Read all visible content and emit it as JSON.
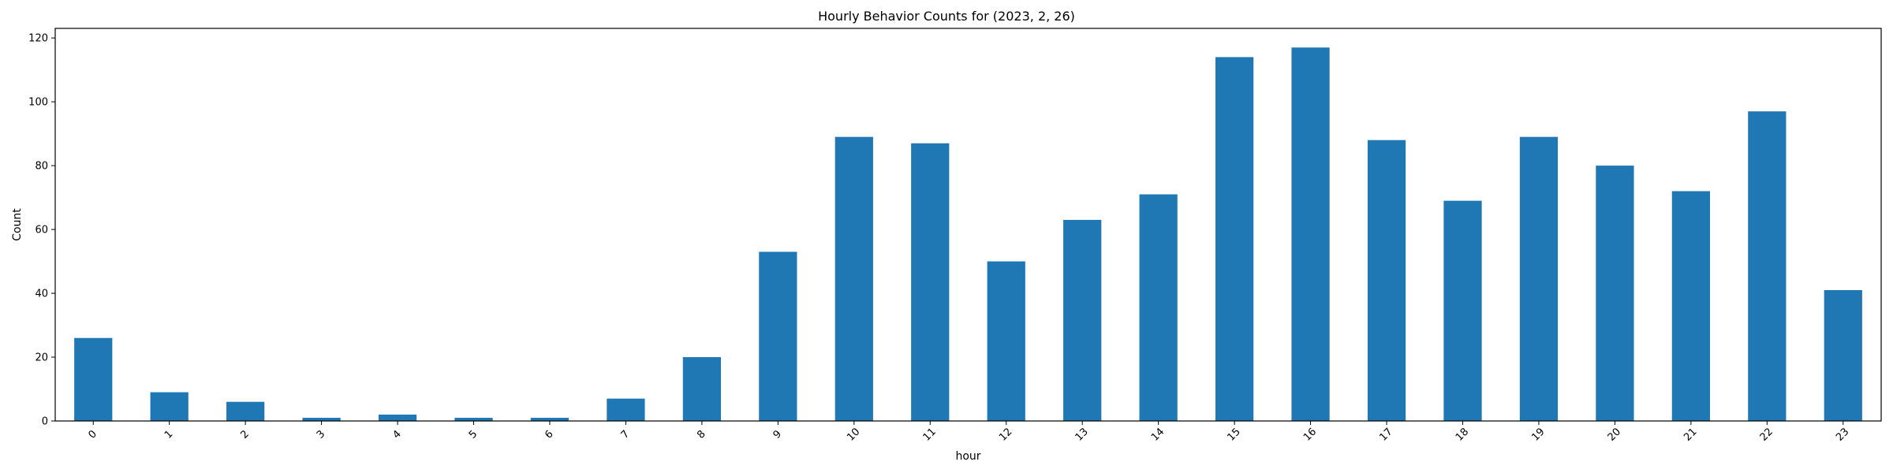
{
  "chart_data": {
    "type": "bar",
    "title": "Hourly Behavior Counts for (2023, 2, 26)",
    "xlabel": "hour",
    "ylabel": "Count",
    "categories": [
      "0",
      "1",
      "2",
      "3",
      "4",
      "5",
      "6",
      "7",
      "8",
      "9",
      "10",
      "11",
      "12",
      "13",
      "14",
      "15",
      "16",
      "17",
      "18",
      "19",
      "20",
      "21",
      "22",
      "23"
    ],
    "values": [
      26,
      9,
      6,
      1,
      2,
      1,
      1,
      7,
      20,
      53,
      89,
      87,
      50,
      63,
      71,
      114,
      117,
      88,
      69,
      89,
      80,
      72,
      97,
      41
    ],
    "ylim": [
      0,
      123
    ],
    "yticks": [
      "0",
      "20",
      "40",
      "60",
      "80",
      "100",
      "120"
    ],
    "bar_color": "#1f77b4",
    "grid": false,
    "xtick_rotation_deg": 45
  }
}
